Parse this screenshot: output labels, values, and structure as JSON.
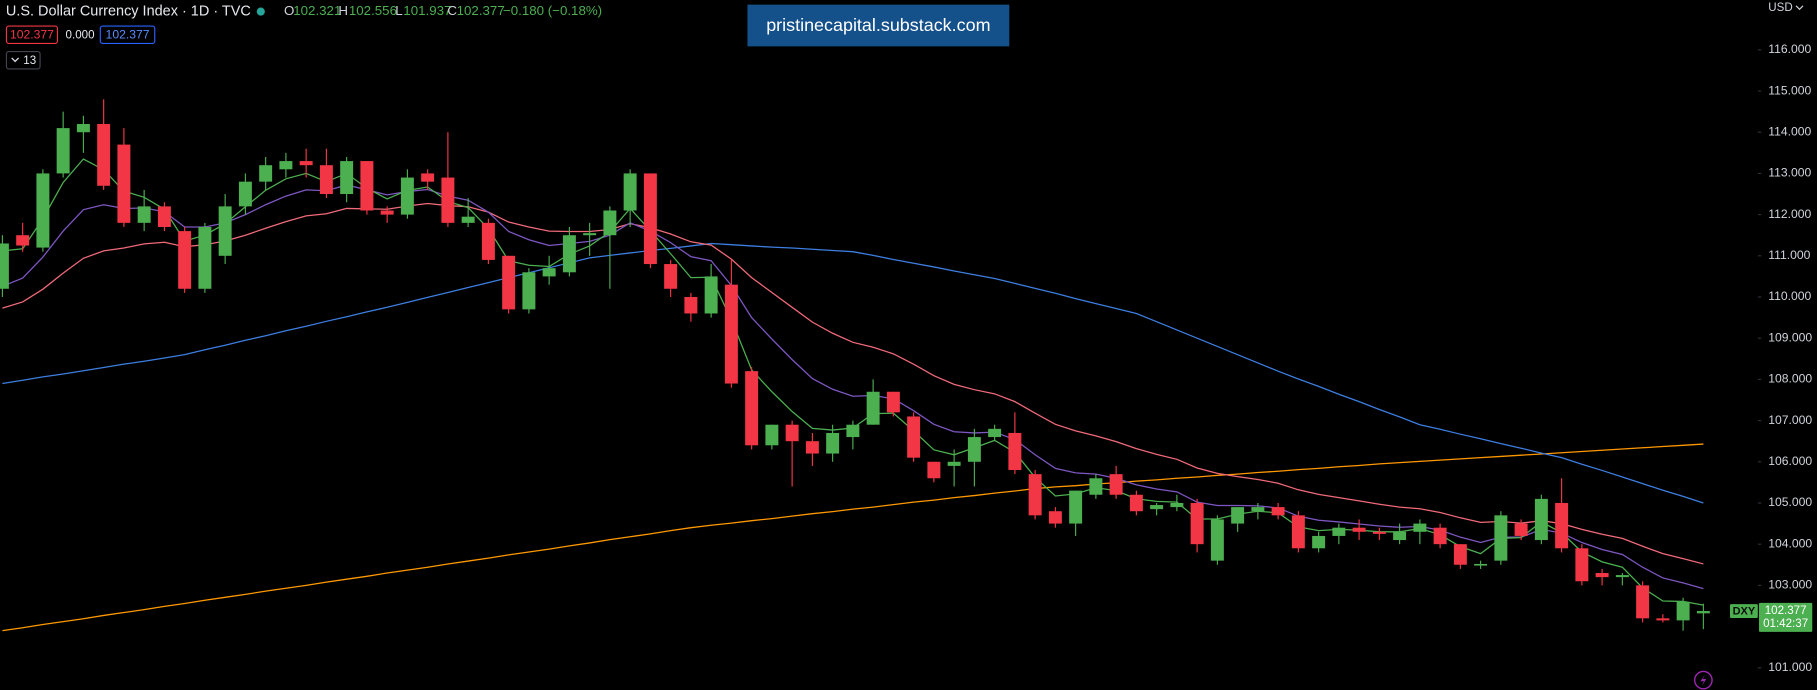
{
  "chart_data": {
    "type": "candlestick",
    "title": "U.S. Dollar Currency Index · 1D · TVC",
    "ohlc_legend": [
      {
        "label": "O",
        "value": "102.321"
      },
      {
        "label": "H",
        "value": "102.556"
      },
      {
        "label": "L",
        "value": "101.937"
      },
      {
        "label": "C",
        "value": "102.377"
      }
    ],
    "change": "−0.180 (−0.18%)",
    "badges": {
      "bid": "102.377",
      "spread": "0.000",
      "ask": "102.377",
      "indicators": "13"
    },
    "watermark": "pristinecapital.substack.com",
    "currency": "USD",
    "symbol": "DXY",
    "price_label": "102.377",
    "countdown": "01:42:37",
    "up_color": "#4caf50",
    "down_color": "#f23645",
    "open": [
      110.2,
      111.5,
      111.2,
      113.0,
      114.0,
      114.2,
      113.7,
      111.8,
      112.2,
      111.6,
      110.2,
      111.0,
      112.2,
      112.8,
      113.1,
      113.3,
      113.2,
      112.5,
      113.3,
      112.1,
      112.0,
      113.0,
      112.9,
      111.8,
      111.8,
      111.0,
      109.7,
      110.5,
      110.6,
      111.5,
      111.5,
      112.1,
      113.0,
      110.8,
      110.0,
      109.6,
      110.3,
      108.2,
      106.4,
      106.9,
      106.5,
      106.2,
      106.6,
      106.9,
      107.7,
      107.1,
      106.0,
      105.9,
      106.0,
      106.6,
      106.7,
      105.7,
      104.8,
      104.5,
      105.2,
      105.7,
      105.2,
      104.85,
      104.9,
      105.0,
      103.6,
      104.5,
      104.8,
      104.9,
      104.7,
      103.9,
      104.2,
      104.4,
      104.3,
      104.1,
      104.3,
      104.4,
      104.0,
      103.48,
      103.6,
      104.5,
      104.1,
      105.0,
      103.9,
      103.3,
      103.2,
      103.0,
      102.2,
      102.15,
      102.321
    ],
    "high": [
      111.5,
      111.8,
      113.1,
      114.5,
      114.4,
      114.8,
      114.1,
      112.6,
      112.3,
      111.7,
      111.8,
      112.5,
      113.0,
      113.4,
      113.5,
      113.6,
      113.6,
      113.4,
      113.3,
      112.2,
      113.1,
      113.1,
      114.0,
      112.4,
      111.9,
      111.0,
      110.7,
      111.0,
      111.7,
      111.8,
      112.2,
      113.1,
      113.0,
      110.9,
      110.1,
      110.8,
      110.9,
      108.3,
      106.9,
      107.0,
      106.7,
      106.9,
      107.0,
      108.0,
      107.7,
      107.2,
      106.0,
      106.3,
      106.8,
      106.9,
      107.2,
      105.8,
      104.9,
      105.3,
      105.7,
      105.9,
      105.3,
      105.0,
      105.2,
      105.1,
      104.7,
      104.9,
      105.0,
      105.0,
      104.8,
      104.3,
      104.5,
      104.6,
      104.4,
      104.5,
      104.6,
      104.5,
      104.0,
      103.6,
      104.8,
      104.6,
      105.2,
      105.6,
      104.0,
      103.4,
      103.3,
      103.1,
      102.3,
      102.7,
      102.556
    ],
    "low": [
      110.0,
      111.1,
      111.1,
      112.9,
      113.5,
      112.6,
      111.7,
      111.6,
      111.6,
      110.1,
      110.1,
      110.8,
      112.0,
      112.6,
      112.9,
      112.9,
      112.4,
      112.3,
      112.0,
      111.8,
      111.9,
      112.6,
      111.7,
      111.7,
      110.8,
      109.6,
      109.6,
      110.3,
      110.5,
      111.0,
      110.2,
      111.7,
      110.7,
      110.0,
      109.4,
      109.5,
      107.8,
      106.3,
      106.3,
      105.4,
      105.9,
      106.0,
      106.3,
      106.9,
      107.1,
      106.0,
      105.5,
      105.4,
      105.4,
      106.5,
      105.7,
      104.6,
      104.4,
      104.2,
      105.1,
      105.1,
      104.7,
      104.7,
      104.8,
      103.8,
      103.5,
      104.3,
      104.6,
      104.6,
      103.8,
      103.8,
      104.0,
      104.1,
      104.1,
      104.0,
      104.0,
      103.9,
      103.4,
      103.4,
      103.5,
      104.1,
      104.0,
      103.8,
      103.0,
      103.0,
      103.0,
      102.1,
      102.1,
      101.9,
      101.937
    ],
    "close": [
      111.3,
      111.25,
      113.0,
      114.1,
      114.2,
      112.7,
      111.8,
      112.2,
      111.7,
      110.2,
      111.7,
      112.2,
      112.8,
      113.2,
      113.3,
      113.2,
      112.5,
      113.3,
      112.1,
      112.0,
      112.9,
      112.8,
      111.8,
      111.95,
      110.9,
      109.7,
      110.6,
      110.7,
      111.5,
      111.55,
      112.1,
      113.0,
      110.8,
      110.2,
      109.6,
      110.5,
      107.9,
      106.4,
      106.9,
      106.5,
      106.2,
      106.7,
      106.9,
      107.7,
      107.2,
      106.1,
      105.6,
      106.0,
      106.6,
      106.8,
      105.8,
      104.7,
      104.5,
      105.3,
      105.6,
      105.2,
      104.8,
      104.95,
      105.0,
      104.0,
      104.6,
      104.9,
      104.9,
      104.7,
      103.9,
      104.2,
      104.4,
      104.3,
      104.25,
      104.3,
      104.5,
      104.0,
      103.5,
      103.52,
      104.7,
      104.2,
      105.1,
      103.9,
      103.1,
      103.2,
      103.25,
      102.2,
      102.15,
      102.6,
      102.377
    ],
    "moving_averages": [
      {
        "color": "#ff9800",
        "values": [
          101.9,
          101.97,
          102.05,
          102.12,
          102.19,
          102.27,
          102.34,
          102.41,
          102.49,
          102.56,
          102.64,
          102.71,
          102.78,
          102.86,
          102.93,
          103.0,
          103.08,
          103.15,
          103.22,
          103.3,
          103.37,
          103.44,
          103.52,
          103.59,
          103.66,
          103.74,
          103.81,
          103.88,
          103.96,
          104.03,
          104.11,
          104.18,
          104.25,
          104.33,
          104.4,
          104.46,
          104.51,
          104.57,
          104.62,
          104.68,
          104.74,
          104.79,
          104.85,
          104.9,
          104.96,
          105.02,
          105.07,
          105.13,
          105.18,
          105.24,
          105.29,
          105.35,
          105.39,
          105.42,
          105.46,
          105.49,
          105.53,
          105.56,
          105.6,
          105.63,
          105.67,
          105.7,
          105.74,
          105.77,
          105.81,
          105.84,
          105.88,
          105.91,
          105.95,
          105.98,
          106.01,
          106.04,
          106.07,
          106.1,
          106.13,
          106.16,
          106.19,
          106.22,
          106.25,
          106.28,
          106.31,
          106.34,
          106.37,
          106.4,
          106.43
        ]
      },
      {
        "color": "#3d7ee0",
        "values": [
          107.9,
          107.98,
          108.06,
          108.13,
          108.21,
          108.29,
          108.37,
          108.44,
          108.52,
          108.6,
          108.72,
          108.83,
          108.95,
          109.06,
          109.18,
          109.29,
          109.41,
          109.52,
          109.64,
          109.75,
          109.87,
          109.99,
          110.11,
          110.23,
          110.35,
          110.47,
          110.59,
          110.71,
          110.83,
          110.95,
          111.01,
          111.07,
          111.13,
          111.18,
          111.24,
          111.3,
          111.27,
          111.24,
          111.21,
          111.19,
          111.16,
          111.13,
          111.1,
          111.01,
          110.91,
          110.82,
          110.73,
          110.63,
          110.54,
          110.45,
          110.33,
          110.21,
          110.09,
          109.96,
          109.84,
          109.72,
          109.6,
          109.4,
          109.2,
          109.0,
          108.8,
          108.6,
          108.4,
          108.2,
          108.01,
          107.83,
          107.64,
          107.46,
          107.27,
          107.09,
          106.9,
          106.79,
          106.67,
          106.56,
          106.44,
          106.33,
          106.21,
          106.1,
          105.94,
          105.79,
          105.63,
          105.47,
          105.31,
          105.16,
          105.0
        ]
      },
      {
        "color": "#f06a78",
        "values": [
          109.73,
          109.88,
          110.19,
          110.58,
          110.94,
          111.12,
          111.19,
          111.29,
          111.33,
          111.22,
          111.27,
          111.36,
          111.5,
          111.67,
          111.83,
          111.97,
          112.02,
          112.15,
          112.14,
          112.13,
          112.21,
          112.27,
          112.22,
          112.19,
          112.06,
          111.82,
          111.7,
          111.6,
          111.59,
          111.59,
          111.64,
          111.78,
          111.68,
          111.53,
          111.34,
          111.26,
          110.92,
          110.47,
          110.11,
          109.75,
          109.39,
          109.12,
          108.9,
          108.78,
          108.62,
          108.37,
          108.09,
          107.88,
          107.75,
          107.65,
          107.46,
          107.18,
          106.91,
          106.75,
          106.63,
          106.49,
          106.32,
          106.18,
          106.06,
          105.85,
          105.72,
          105.64,
          105.57,
          105.48,
          105.32,
          105.21,
          105.13,
          105.05,
          104.97,
          104.9,
          104.86,
          104.77,
          104.64,
          104.53,
          104.55,
          104.51,
          104.57,
          104.5,
          104.36,
          104.24,
          104.14,
          103.95,
          103.77,
          103.65,
          103.52
        ]
      },
      {
        "color": "#7e57c2",
        "values": [
          110.26,
          110.46,
          110.97,
          111.6,
          112.12,
          112.24,
          112.15,
          112.16,
          112.07,
          111.7,
          111.7,
          111.8,
          112.0,
          112.24,
          112.45,
          112.6,
          112.58,
          112.72,
          112.6,
          112.48,
          112.56,
          112.61,
          112.45,
          112.35,
          112.06,
          111.59,
          111.39,
          111.25,
          111.3,
          111.35,
          111.5,
          111.8,
          111.6,
          111.32,
          110.98,
          110.88,
          110.28,
          109.5,
          108.98,
          108.48,
          108.02,
          107.76,
          107.59,
          107.61,
          107.53,
          107.24,
          106.91,
          106.73,
          106.7,
          106.72,
          106.54,
          106.17,
          105.84,
          105.73,
          105.7,
          105.6,
          105.44,
          105.34,
          105.27,
          105.02,
          104.94,
          104.94,
          104.93,
          104.88,
          104.68,
          104.58,
          104.54,
          104.49,
          104.44,
          104.41,
          104.43,
          104.34,
          104.17,
          104.04,
          104.17,
          104.17,
          104.36,
          104.27,
          104.04,
          103.87,
          103.75,
          103.44,
          103.18,
          103.06,
          102.92
        ]
      },
      {
        "color": "#4caf50",
        "values": [
          111.12,
          111.17,
          111.9,
          112.78,
          113.35,
          113.09,
          112.57,
          112.42,
          112.13,
          111.36,
          111.5,
          111.78,
          112.19,
          112.59,
          112.87,
          113.0,
          112.8,
          113.0,
          112.64,
          112.38,
          112.59,
          112.67,
          112.32,
          112.17,
          111.66,
          110.88,
          110.77,
          110.74,
          111.04,
          111.24,
          111.58,
          112.15,
          111.61,
          111.05,
          110.47,
          110.48,
          109.45,
          108.23,
          107.7,
          107.22,
          106.81,
          106.77,
          106.82,
          107.17,
          107.18,
          106.75,
          106.29,
          106.17,
          106.34,
          106.52,
          106.23,
          105.62,
          105.17,
          105.22,
          105.37,
          105.3,
          105.1,
          105.04,
          105.02,
          104.61,
          104.61,
          104.73,
          104.8,
          104.76,
          104.42,
          104.33,
          104.36,
          104.34,
          104.3,
          104.3,
          104.38,
          104.23,
          103.94,
          103.77,
          104.14,
          104.16,
          104.54,
          104.28,
          103.81,
          103.57,
          103.44,
          102.94,
          102.62,
          102.61,
          102.52
        ]
      }
    ],
    "ylim": [
      100.46,
      117.21
    ],
    "yticks": [
      {
        "value": 101,
        "label": "101.000"
      },
      {
        "value": 103,
        "label": "103.000"
      },
      {
        "value": 104,
        "label": "104.000"
      },
      {
        "value": 105,
        "label": "105.000"
      },
      {
        "value": 106,
        "label": "106.000"
      },
      {
        "value": 107,
        "label": "107.000"
      },
      {
        "value": 108,
        "label": "108.000"
      },
      {
        "value": 109,
        "label": "109.000"
      },
      {
        "value": 110,
        "label": "110.000"
      },
      {
        "value": 111,
        "label": "111.000"
      },
      {
        "value": 112,
        "label": "112.000"
      },
      {
        "value": 113,
        "label": "113.000"
      },
      {
        "value": 114,
        "label": "114.000"
      },
      {
        "value": 115,
        "label": "115.000"
      },
      {
        "value": 116,
        "label": "116.000"
      }
    ]
  }
}
